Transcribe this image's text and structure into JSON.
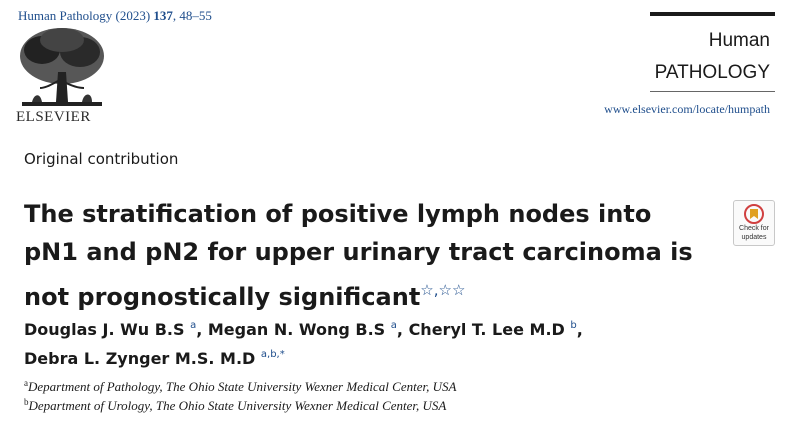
{
  "header": {
    "citation_prefix": "Human Pathology (2023) ",
    "citation_volume": "137",
    "citation_pages": ", 48–55",
    "publisher": "ELSEVIER",
    "journal_line1": "Human",
    "journal_line2": "PATHOLOGY",
    "url": "www.elsevier.com/locate/humpath",
    "check_updates_line1": "Check for",
    "check_updates_line2": "updates"
  },
  "article": {
    "section": "Original contribution",
    "title_line1": "The stratification of positive lymph nodes into",
    "title_line2": "pN1 and pN2 for upper urinary tract carcinoma is",
    "title_line3": "not prognostically significant",
    "title_marks": "☆,☆☆"
  },
  "authors": [
    {
      "name": "Douglas J. Wu B.S",
      "aff": "a",
      "sep": ", "
    },
    {
      "name": "Megan N. Wong B.S",
      "aff": "a",
      "sep": ", "
    },
    {
      "name": "Cheryl T. Lee M.D",
      "aff": "b",
      "sep": ","
    },
    {
      "name": "Debra L. Zynger M.S. M.D",
      "aff": "a,b,*",
      "sep": ""
    }
  ],
  "affiliations": [
    {
      "mark": "a",
      "text": "Department of Pathology, The Ohio State University Wexner Medical Center, USA"
    },
    {
      "mark": "b",
      "text": "Department of Urology, The Ohio State University Wexner Medical Center, USA"
    }
  ],
  "colors": {
    "link_blue": "#1f4e8c",
    "text": "#1a1a1a"
  }
}
